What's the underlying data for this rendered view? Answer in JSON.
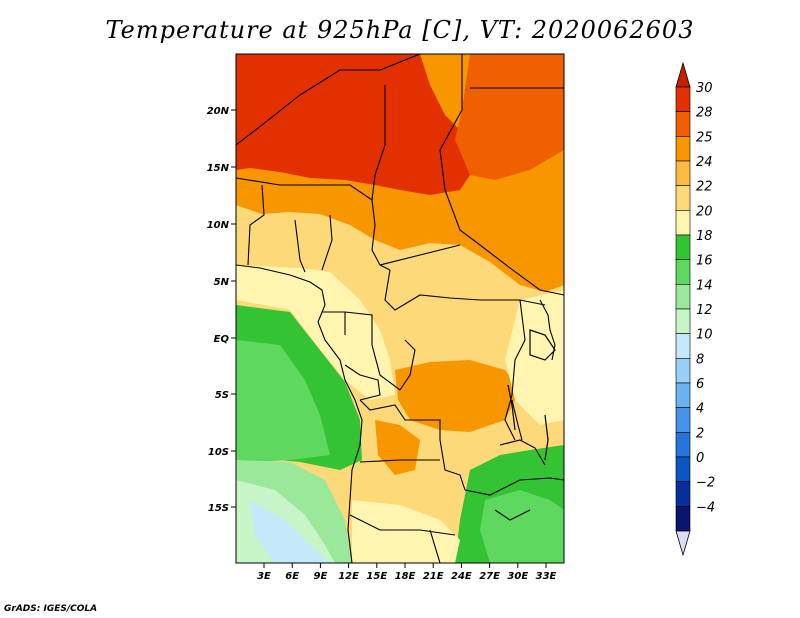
{
  "title": "Temperature at 925hPa [C], VT: 2020062603",
  "credit": "GrADS: IGES/COLA",
  "lat_labels": [
    "20N",
    "15N",
    "10N",
    "5N",
    "EQ",
    "5S",
    "10S",
    "15S"
  ],
  "lon_labels": [
    "3E",
    "6E",
    "9E",
    "12E",
    "15E",
    "18E",
    "21E",
    "24E",
    "27E",
    "30E",
    "33E"
  ],
  "colorbar": {
    "labels": [
      "30",
      "28",
      "25",
      "24",
      "22",
      "20",
      "18",
      "16",
      "14",
      "12",
      "10",
      "8",
      "6",
      "4",
      "2",
      "0",
      "-2",
      "-4"
    ],
    "colors": [
      "#e33000",
      "#f05f00",
      "#f89600",
      "#fbbb40",
      "#fdd97a",
      "#fff5b0",
      "#33c333",
      "#5fd85f",
      "#9ae89a",
      "#c8f5c8",
      "#c5e8fb",
      "#98d0f8",
      "#6ab2f0",
      "#4593e8",
      "#2574d9",
      "#0c54c2",
      "#05309a",
      "#0a1570"
    ],
    "top_arrow_color": "#c81e00",
    "bottom_arrow_color": "#dcdcf5"
  }
}
